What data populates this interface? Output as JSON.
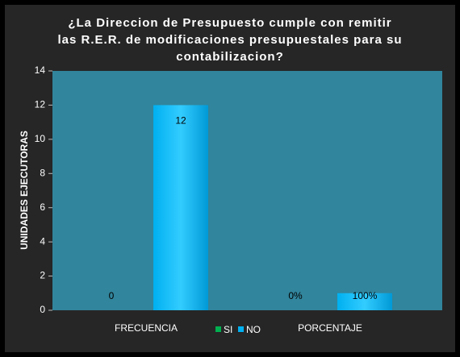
{
  "chart_data": {
    "type": "bar",
    "title": "¿La Direccion de Presupuesto cumple con remitir las R.E.R. de modificaciones presupuestales para su contabilizacion?",
    "y_label": "UNIDADES EJECUTORAS",
    "categories": [
      "FRECUENCIA",
      "PORCENTAJE"
    ],
    "series": [
      {
        "name": "SI",
        "color": "#00b050",
        "values": [
          0,
          0
        ],
        "value_labels": [
          "0",
          "0%"
        ]
      },
      {
        "name": "NO",
        "color": "#00b0f0",
        "values": [
          12,
          1
        ],
        "value_labels": [
          "12",
          "100%"
        ]
      }
    ],
    "ylim": [
      0,
      14
    ],
    "yticks": [
      0,
      2,
      4,
      6,
      8,
      10,
      12,
      14
    ],
    "grid": false,
    "legend": "bottom"
  }
}
